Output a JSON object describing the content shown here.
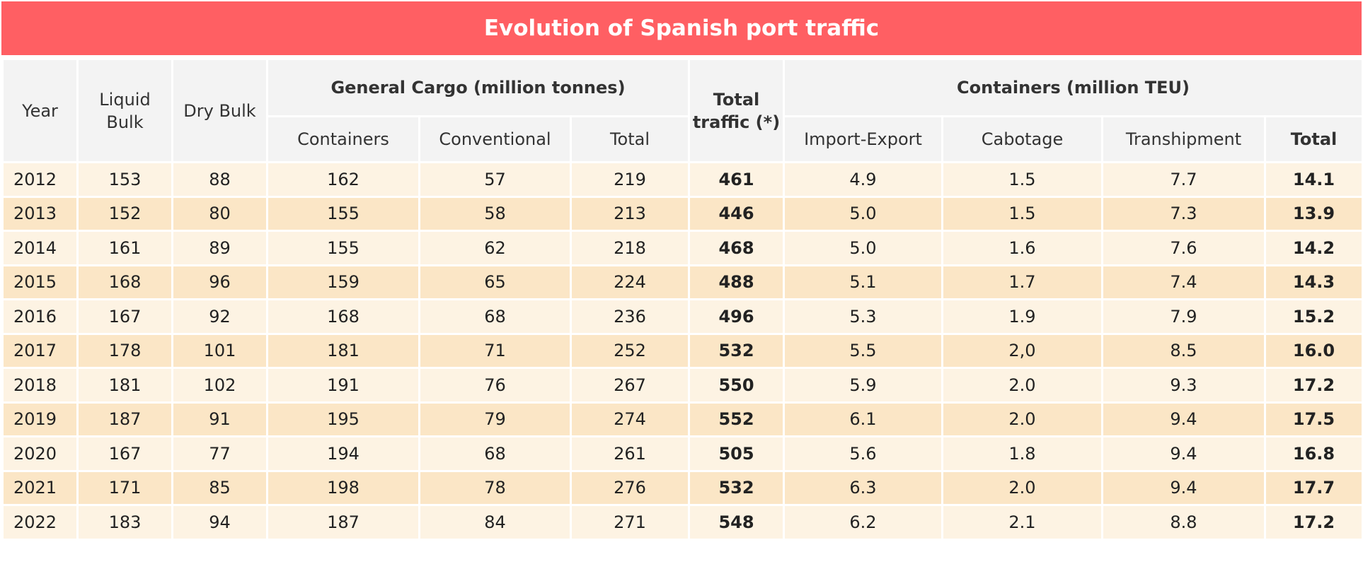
{
  "title": "Evolution of Spanish port traffic",
  "colors": {
    "title_bg": "#ff5f63",
    "header_bg": "#f3f3f3",
    "row_light": "#fdf3e3",
    "row_dark": "#fbe6c6"
  },
  "headers": {
    "year": "Year",
    "liquid_bulk": "Liquid Bulk",
    "dry_bulk": "Dry Bulk",
    "general_cargo": "General Cargo (million tonnes)",
    "gc_containers": "Containers",
    "gc_conventional": "Conventional",
    "gc_total": "Total",
    "total_traffic": "Total traffic (*)",
    "containers_teu": "Containers (million TEU)",
    "import_export": "Import-Export",
    "cabotage": "Cabotage",
    "transhipment": "Transhipment",
    "teu_total": "Total"
  },
  "chart_data": {
    "type": "table",
    "title": "Evolution of Spanish port traffic",
    "columns": [
      "Year",
      "Liquid Bulk",
      "Dry Bulk",
      "Containers",
      "Conventional",
      "Total",
      "Total traffic (*)",
      "Import-Export",
      "Cabotage",
      "Transhipment",
      "Total"
    ],
    "rows": [
      [
        "2012",
        "153",
        "88",
        "162",
        "57",
        "219",
        "461",
        "4.9",
        "1.5",
        "7.7",
        "14.1"
      ],
      [
        "2013",
        "152",
        "80",
        "155",
        "58",
        "213",
        "446",
        "5.0",
        "1.5",
        "7.3",
        "13.9"
      ],
      [
        "2014",
        "161",
        "89",
        "155",
        "62",
        "218",
        "468",
        "5.0",
        "1.6",
        "7.6",
        "14.2"
      ],
      [
        "2015",
        "168",
        "96",
        "159",
        "65",
        "224",
        "488",
        "5.1",
        "1.7",
        "7.4",
        "14.3"
      ],
      [
        "2016",
        "167",
        "92",
        "168",
        "68",
        "236",
        "496",
        "5.3",
        "1.9",
        "7.9",
        "15.2"
      ],
      [
        "2017",
        "178",
        "101",
        "181",
        "71",
        "252",
        "532",
        "5.5",
        "2,0",
        "8.5",
        "16.0"
      ],
      [
        "2018",
        "181",
        "102",
        "191",
        "76",
        "267",
        "550",
        "5.9",
        "2.0",
        "9.3",
        "17.2"
      ],
      [
        "2019",
        "187",
        "91",
        "195",
        "79",
        "274",
        "552",
        "6.1",
        "2.0",
        "9.4",
        "17.5"
      ],
      [
        "2020",
        "167",
        "77",
        "194",
        "68",
        "261",
        "505",
        "5.6",
        "1.8",
        "9.4",
        "16.8"
      ],
      [
        "2021",
        "171",
        "85",
        "198",
        "78",
        "276",
        "532",
        "6.3",
        "2.0",
        "9.4",
        "17.7"
      ],
      [
        "2022",
        "183",
        "94",
        "187",
        "84",
        "271",
        "548",
        "6.2",
        "2.1",
        "8.8",
        "17.2"
      ]
    ]
  }
}
